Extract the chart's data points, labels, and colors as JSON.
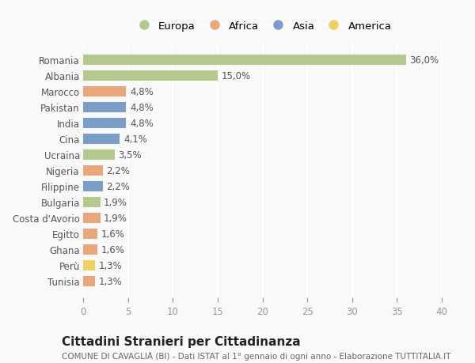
{
  "countries": [
    "Romania",
    "Albania",
    "Marocco",
    "Pakistan",
    "India",
    "Cina",
    "Ucraina",
    "Nigeria",
    "Filippine",
    "Bulgaria",
    "Costa d'Avorio",
    "Egitto",
    "Ghana",
    "Perù",
    "Tunisia"
  ],
  "values": [
    36.0,
    15.0,
    4.8,
    4.8,
    4.8,
    4.1,
    3.5,
    2.2,
    2.2,
    1.9,
    1.9,
    1.6,
    1.6,
    1.3,
    1.3
  ],
  "labels": [
    "36,0%",
    "15,0%",
    "4,8%",
    "4,8%",
    "4,8%",
    "4,1%",
    "3,5%",
    "2,2%",
    "2,2%",
    "1,9%",
    "1,9%",
    "1,6%",
    "1,6%",
    "1,3%",
    "1,3%"
  ],
  "continents": [
    "Europa",
    "Europa",
    "Africa",
    "Asia",
    "Asia",
    "Asia",
    "Europa",
    "Africa",
    "Asia",
    "Europa",
    "Africa",
    "Africa",
    "Africa",
    "America",
    "Africa"
  ],
  "continent_colors": {
    "Europa": "#b5c98e",
    "Africa": "#e8a87c",
    "Asia": "#7b9ec9",
    "America": "#f0d060"
  },
  "legend_order": [
    "Europa",
    "Africa",
    "Asia",
    "America"
  ],
  "xlim": [
    0,
    40
  ],
  "xticks": [
    0,
    5,
    10,
    15,
    20,
    25,
    30,
    35,
    40
  ],
  "title": "Cittadini Stranieri per Cittadinanza",
  "subtitle": "COMUNE DI CAVAGLIÀ (BI) - Dati ISTAT al 1° gennaio di ogni anno - Elaborazione TUTTITALIA.IT",
  "bg_color": "#f9f9f9",
  "grid_color": "#ffffff",
  "bar_height": 0.65,
  "label_fontsize": 8.5,
  "tick_fontsize": 8.5,
  "title_fontsize": 11,
  "subtitle_fontsize": 7.5
}
